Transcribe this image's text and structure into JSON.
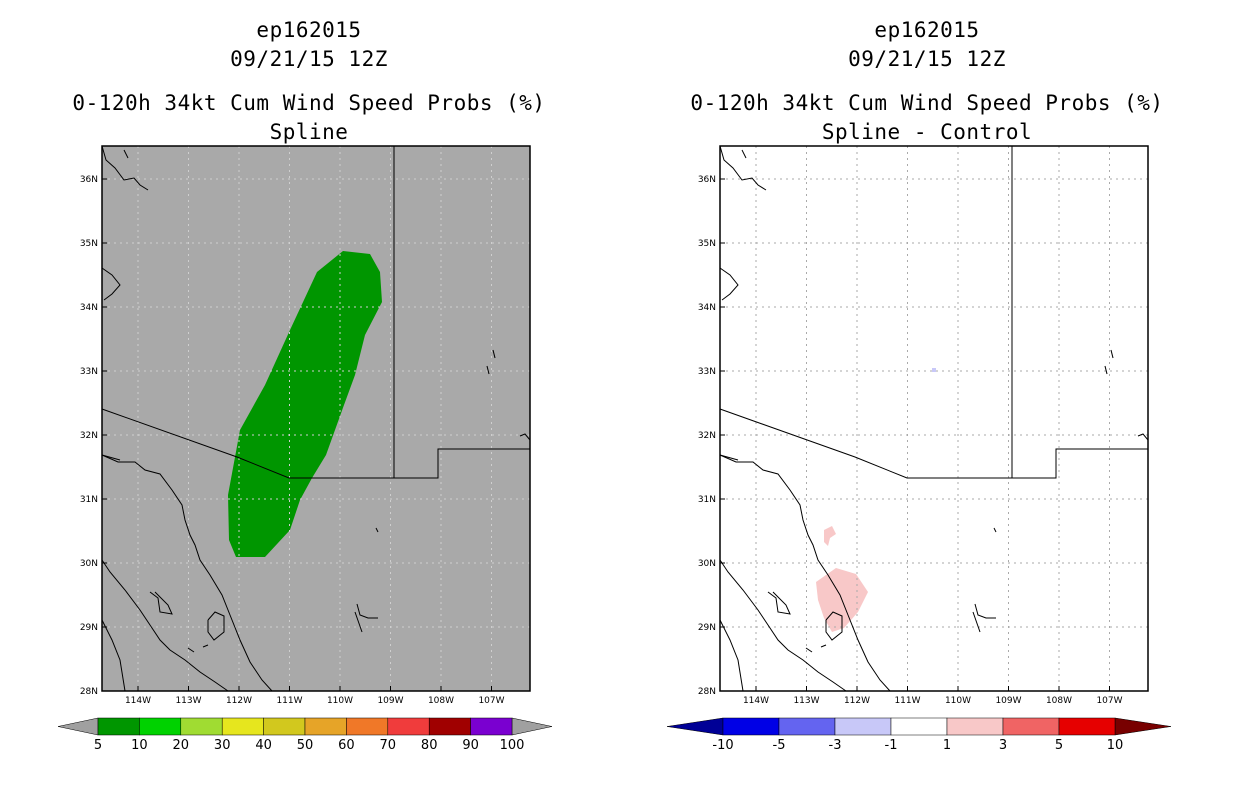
{
  "panels": [
    {
      "storm_id": "ep162015",
      "datetime": "09/21/15 12Z",
      "product": "0-120h 34kt Cum Wind Speed Probs (%)",
      "subtitle": "Spline",
      "background": "#a9a9a9",
      "grid_color": "#cfcfcf",
      "lat_ticks": [
        "36N",
        "35N",
        "34N",
        "33N",
        "32N",
        "31N",
        "30N",
        "29N",
        "28N"
      ],
      "lon_ticks": [
        "114W",
        "113W",
        "112W",
        "111W",
        "110W",
        "109W",
        "108W",
        "107W"
      ],
      "colorbar": {
        "labels": [
          "5",
          "10",
          "20",
          "30",
          "40",
          "50",
          "60",
          "70",
          "80",
          "90",
          "100"
        ],
        "colors": [
          "#009600",
          "#00d200",
          "#a0dc32",
          "#e6e61e",
          "#d2c81e",
          "#e6a428",
          "#f07828",
          "#f03c3c",
          "#a00000",
          "#7a00d0"
        ],
        "end_colors": [
          "#a0a0a0",
          "#a0a0a0"
        ]
      },
      "features": [
        {
          "name": "probability-region-5to10",
          "color": "#009600"
        }
      ]
    },
    {
      "storm_id": "ep162015",
      "datetime": "09/21/15 12Z",
      "product": "0-120h 34kt Cum Wind Speed Probs (%)",
      "subtitle": "Spline - Control",
      "background": "#ffffff",
      "grid_color": "#aaaaaa",
      "lat_ticks": [
        "36N",
        "35N",
        "34N",
        "33N",
        "32N",
        "31N",
        "30N",
        "29N",
        "28N"
      ],
      "lon_ticks": [
        "114W",
        "113W",
        "112W",
        "111W",
        "110W",
        "109W",
        "108W",
        "107W"
      ],
      "colorbar": {
        "labels": [
          "-10",
          "-5",
          "-3",
          "-1",
          "1",
          "3",
          "5",
          "10"
        ],
        "colors": [
          "#0000e6",
          "#6464f0",
          "#c8c8f8",
          "#ffffff",
          "#f8c8c8",
          "#f06464",
          "#e60000"
        ],
        "end_colors": [
          "#000096",
          "#780000"
        ]
      },
      "features": [
        {
          "name": "difference-region-plus-1to3",
          "color": "#f8c8c8"
        },
        {
          "name": "difference-region-minus-1to3",
          "color": "#c8c8f8"
        }
      ]
    }
  ]
}
